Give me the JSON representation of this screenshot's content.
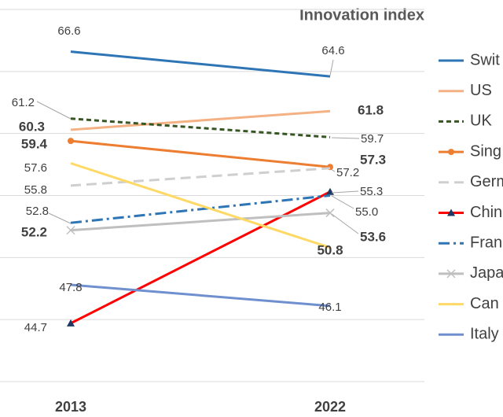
{
  "chart_data": {
    "type": "slope",
    "title": "Innovation index",
    "categories": [
      "2013",
      "2022"
    ],
    "ylim": [
      40,
      70
    ],
    "yticks": [
      40,
      45,
      50,
      55,
      60,
      65,
      70
    ],
    "grid": true,
    "series": [
      {
        "name": "Swit",
        "color": "#2e75b6",
        "line": "solid",
        "values": [
          66.6,
          64.6
        ],
        "bold": [
          false,
          false
        ]
      },
      {
        "name": "US",
        "color": "#f4b183",
        "line": "solid",
        "values": [
          60.3,
          61.8
        ],
        "bold": [
          true,
          true
        ]
      },
      {
        "name": "UK",
        "color": "#375623",
        "line": "dash",
        "values": [
          61.2,
          59.7
        ],
        "bold": [
          false,
          false
        ]
      },
      {
        "name": "Sing",
        "color": "#ed7d31",
        "line": "solid",
        "marker": "circle",
        "values": [
          59.4,
          57.3
        ],
        "bold": [
          true,
          true
        ]
      },
      {
        "name": "Germ",
        "color": "#d0cece",
        "line": "longdash",
        "values": [
          55.8,
          57.2
        ],
        "bold": [
          false,
          false
        ]
      },
      {
        "name": "Chin",
        "color": "#ff0000",
        "line": "solid",
        "marker": "triangle",
        "marker_color": "#1f3864",
        "values": [
          44.7,
          55.3
        ],
        "bold": [
          false,
          false
        ]
      },
      {
        "name": "Fran",
        "color": "#2e75b6",
        "line": "dashdot",
        "values": [
          52.8,
          55.0
        ],
        "value_labels": [
          "52.8",
          "55.0"
        ],
        "bold": [
          false,
          false
        ]
      },
      {
        "name": "Japa",
        "color": "#bfbfbf",
        "line": "solid",
        "marker": "x",
        "values": [
          52.2,
          53.6
        ],
        "bold": [
          true,
          true
        ]
      },
      {
        "name": "Can",
        "color": "#ffd966",
        "line": "solid",
        "values": [
          57.6,
          50.8
        ],
        "bold": [
          false,
          true
        ]
      },
      {
        "name": "Italy",
        "color": "#6f8fcf",
        "line": "solid",
        "values": [
          47.8,
          46.1
        ],
        "bold": [
          false,
          false
        ]
      }
    ]
  }
}
